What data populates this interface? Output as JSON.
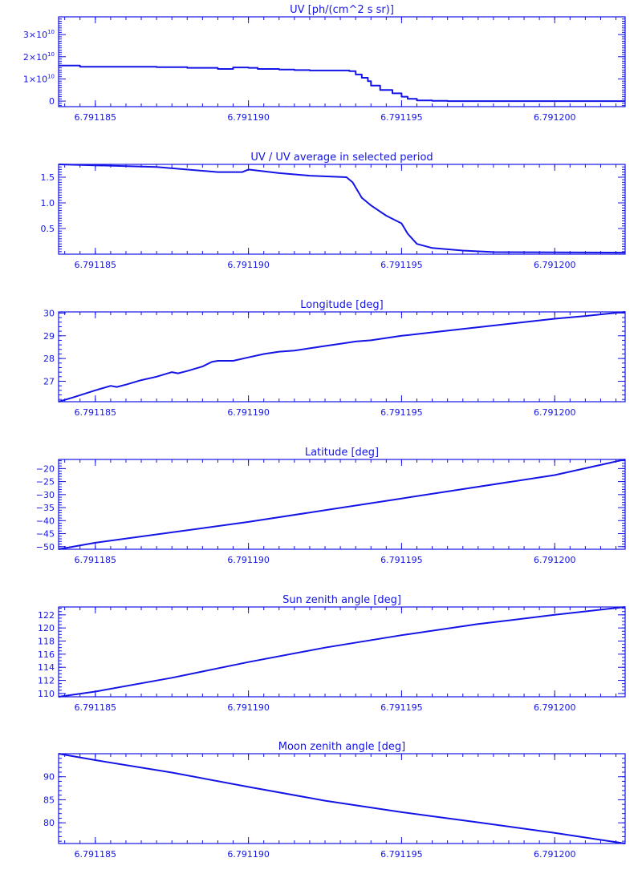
{
  "colors": {
    "line": "#1414e6",
    "background": "#ffffff"
  },
  "chart_data": [
    {
      "type": "line",
      "title": "UV [ph/(cm^2 s sr)]",
      "xlim": [
        6.7911838,
        6.7912023
      ],
      "ylim": [
        -2500000000.0,
        38000000000.0
      ],
      "x_ticks": [
        6.791185,
        6.79119,
        6.791195,
        6.7912
      ],
      "x_tick_labels": [
        "6.791185",
        "6.791190",
        "6.791195",
        "6.791200"
      ],
      "y_ticks": [
        0,
        10000000000.0,
        20000000000.0,
        30000000000.0
      ],
      "y_tick_labels": [
        {
          "mant": "0",
          "exp": ""
        },
        {
          "mant": "1×10",
          "exp": "10"
        },
        {
          "mant": "2×10",
          "exp": "10"
        },
        {
          "mant": "3×10",
          "exp": "10"
        }
      ],
      "minor_y_step": 1000000000.0,
      "series": [
        {
          "step": true,
          "x": [
            6.7911838,
            6.7911845,
            6.791187,
            6.791188,
            6.791189,
            6.7911895,
            6.79119,
            6.7911903,
            6.791191,
            6.7911915,
            6.791192,
            6.7911933,
            6.7911935,
            6.7911937,
            6.7911939,
            6.791194,
            6.791194,
            6.7911943,
            6.7911947,
            6.791195,
            6.7911952,
            6.7911955,
            6.791196,
            6.7911965,
            6.7912023
          ],
          "y": [
            16000000000.0,
            15500000000.0,
            15300000000.0,
            15000000000.0,
            14500000000.0,
            15200000000.0,
            15000000000.0,
            14500000000.0,
            14200000000.0,
            14000000000.0,
            13800000000.0,
            13500000000.0,
            12000000000.0,
            10500000000.0,
            9000000000.0,
            8000000000.0,
            7000000000.0,
            5000000000.0,
            3500000000.0,
            2000000000.0,
            1000000000.0,
            300000000.0,
            100000000.0,
            0,
            0
          ]
        }
      ]
    },
    {
      "type": "line",
      "title": "UV / UV average in selected period",
      "xlim": [
        6.7911838,
        6.7912023
      ],
      "ylim": [
        0,
        1.75
      ],
      "x_ticks": [
        6.791185,
        6.79119,
        6.791195,
        6.7912
      ],
      "x_tick_labels": [
        "6.791185",
        "6.791190",
        "6.791195",
        "6.791200"
      ],
      "y_ticks": [
        0.5,
        1.0,
        1.5
      ],
      "y_tick_labels": [
        "0.5",
        "1.0",
        "1.5"
      ],
      "minor_y_step": 0.05,
      "series": [
        {
          "x": [
            6.7911838,
            6.791187,
            6.791189,
            6.7911898,
            6.79119,
            6.7911903,
            6.791191,
            6.791192,
            6.7911932,
            6.7911934,
            6.7911937,
            6.791194,
            6.7911945,
            6.791195,
            6.7911952,
            6.7911955,
            6.791196,
            6.791197,
            6.791198,
            6.7912023
          ],
          "y": [
            1.75,
            1.7,
            1.6,
            1.6,
            1.65,
            1.63,
            1.58,
            1.53,
            1.5,
            1.4,
            1.1,
            0.95,
            0.75,
            0.6,
            0.4,
            0.2,
            0.12,
            0.07,
            0.04,
            0.03
          ]
        }
      ]
    },
    {
      "type": "line",
      "title": "Longitude [deg]",
      "xlim": [
        6.7911838,
        6.7912023
      ],
      "ylim": [
        26.1,
        30.05
      ],
      "x_ticks": [
        6.791185,
        6.79119,
        6.791195,
        6.7912
      ],
      "x_tick_labels": [
        "6.791185",
        "6.791190",
        "6.791195",
        "6.791200"
      ],
      "y_ticks": [
        27,
        28,
        29,
        30
      ],
      "y_tick_labels": [
        "27",
        "28",
        "29",
        "30"
      ],
      "minor_y_step": 0.2,
      "series": [
        {
          "x": [
            6.7911838,
            6.7911843,
            6.791185,
            6.7911855,
            6.7911857,
            6.791186,
            6.7911865,
            6.791187,
            6.7911875,
            6.7911877,
            6.791188,
            6.7911885,
            6.7911888,
            6.791189,
            6.7911895,
            6.79119,
            6.7911905,
            6.791191,
            6.7911915,
            6.791192,
            6.7911925,
            6.791193,
            6.7911935,
            6.791194,
            6.791195,
            6.791196,
            6.791197,
            6.791198,
            6.791199,
            6.7912,
            6.791201,
            6.7912023
          ],
          "y": [
            26.1,
            26.3,
            26.6,
            26.8,
            26.75,
            26.85,
            27.05,
            27.2,
            27.4,
            27.35,
            27.45,
            27.65,
            27.85,
            27.9,
            27.9,
            28.05,
            28.2,
            28.3,
            28.35,
            28.45,
            28.55,
            28.65,
            28.75,
            28.8,
            29.0,
            29.15,
            29.3,
            29.45,
            29.6,
            29.75,
            29.87,
            30.05
          ]
        }
      ]
    },
    {
      "type": "line",
      "title": "Latitude [deg]",
      "xlim": [
        6.7911838,
        6.7912023
      ],
      "ylim": [
        -51,
        -16.5
      ],
      "x_ticks": [
        6.791185,
        6.79119,
        6.791195,
        6.7912
      ],
      "x_tick_labels": [
        "6.791185",
        "6.791190",
        "6.791195",
        "6.791200"
      ],
      "y_ticks": [
        -50,
        -45,
        -40,
        -35,
        -30,
        -25,
        -20
      ],
      "y_tick_labels": [
        "−50",
        "−45",
        "−40",
        "−35",
        "−30",
        "−25",
        "−20"
      ],
      "minor_y_step": 1,
      "series": [
        {
          "x": [
            6.7911838,
            6.791185,
            6.79119,
            6.791195,
            6.7912,
            6.7912023
          ],
          "y": [
            -51,
            -48.5,
            -40.5,
            -31.5,
            -22.5,
            -16.5
          ]
        }
      ]
    },
    {
      "type": "line",
      "title": "Sun zenith angle [deg]",
      "xlim": [
        6.7911838,
        6.7912023
      ],
      "ylim": [
        109.5,
        123.2
      ],
      "x_ticks": [
        6.791185,
        6.79119,
        6.791195,
        6.7912
      ],
      "x_tick_labels": [
        "6.791185",
        "6.791190",
        "6.791195",
        "6.791200"
      ],
      "y_ticks": [
        110,
        112,
        114,
        116,
        118,
        120,
        122
      ],
      "y_tick_labels": [
        "110",
        "112",
        "114",
        "116",
        "118",
        "120",
        "122"
      ],
      "minor_y_step": 0.5,
      "series": [
        {
          "x": [
            6.7911838,
            6.791185,
            6.7911875,
            6.79119,
            6.7911925,
            6.791195,
            6.7911975,
            6.7912,
            6.7912023
          ],
          "y": [
            109.5,
            110.3,
            112.4,
            114.8,
            117.0,
            118.9,
            120.6,
            122.0,
            123.2
          ]
        }
      ]
    },
    {
      "type": "line",
      "title": "Moon zenith angle [deg]",
      "xlim": [
        6.7911838,
        6.7912023
      ],
      "ylim": [
        75.5,
        95.0
      ],
      "x_ticks": [
        6.791185,
        6.79119,
        6.791195,
        6.7912
      ],
      "x_tick_labels": [
        "6.791185",
        "6.791190",
        "6.791195",
        "6.791200"
      ],
      "y_ticks": [
        80,
        85,
        90
      ],
      "y_tick_labels": [
        "80",
        "85",
        "90"
      ],
      "minor_y_step": 1,
      "series": [
        {
          "x": [
            6.7911838,
            6.791185,
            6.7911875,
            6.79119,
            6.7911925,
            6.791195,
            6.7911975,
            6.7912,
            6.7912023
          ],
          "y": [
            95.0,
            93.6,
            90.9,
            87.8,
            84.8,
            82.3,
            80.1,
            77.8,
            75.5
          ]
        }
      ]
    }
  ]
}
